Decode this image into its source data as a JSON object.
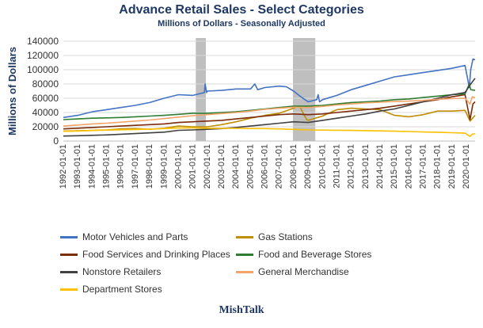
{
  "header": {
    "title": "Advance Retail Sales - Select Categories",
    "subtitle": "Millions  of Dollars  - Seasonally  Adjusted"
  },
  "footer": {
    "brand": "MishTalk"
  },
  "chart_data": {
    "type": "line",
    "title": "Advance Retail Sales - Select Categories",
    "subtitle": "Millions  of Dollars  - Seasonally  Adjusted",
    "ylabel": "Millions of Dollars",
    "xlabel": "",
    "ylim": [
      0,
      140000
    ],
    "yticks": [
      "0",
      "20000",
      "40000",
      "60000",
      "80000",
      "100000",
      "120000",
      "140000"
    ],
    "xlim": [
      1992.0,
      2020.6
    ],
    "xticks": [
      "1992-01-01",
      "1993-01-01",
      "1994-01-01",
      "1995-01-01",
      "1996-01-01",
      "1997-01-01",
      "1998-01-01",
      "1999-01-01",
      "2000-01-01",
      "2001-01-01",
      "2002-01-01",
      "2003-01-01",
      "2004-01-01",
      "2005-01-01",
      "2006-01-01",
      "2007-01-01",
      "2008-01-01",
      "2009-01-01",
      "2010-01-01",
      "2011-01-01",
      "2012-01-01",
      "2013-01-01",
      "2014-01-01",
      "2015-01-01",
      "2016-01-01",
      "2017-01-01",
      "2018-01-01",
      "2019-01-01",
      "2020-01-01"
    ],
    "recessions": [
      [
        2001.2,
        2001.9
      ],
      [
        2007.95,
        2009.5
      ]
    ],
    "grid": "horizontal",
    "legend_position": "bottom",
    "series": [
      {
        "name": "Motor Vehicles and Parts",
        "color": "#4472c4",
        "points": [
          [
            1992,
            33000
          ],
          [
            1993,
            36000
          ],
          [
            1994,
            41000
          ],
          [
            1995,
            44000
          ],
          [
            1996,
            47000
          ],
          [
            1997,
            50000
          ],
          [
            1998,
            54000
          ],
          [
            1999,
            60000
          ],
          [
            2000,
            65000
          ],
          [
            2001,
            64000
          ],
          [
            2001.8,
            68000
          ],
          [
            2001.85,
            80000
          ],
          [
            2001.95,
            68000
          ],
          [
            2002,
            70000
          ],
          [
            2003,
            71000
          ],
          [
            2004,
            73000
          ],
          [
            2005,
            73000
          ],
          [
            2005.3,
            80000
          ],
          [
            2005.5,
            72000
          ],
          [
            2006,
            75000
          ],
          [
            2007,
            77000
          ],
          [
            2007.5,
            76000
          ],
          [
            2008,
            70000
          ],
          [
            2008.5,
            62000
          ],
          [
            2009,
            55000
          ],
          [
            2009.6,
            58000
          ],
          [
            2009.7,
            65000
          ],
          [
            2009.8,
            55000
          ],
          [
            2010,
            58000
          ],
          [
            2011,
            64000
          ],
          [
            2012,
            72000
          ],
          [
            2013,
            78000
          ],
          [
            2014,
            84000
          ],
          [
            2015,
            90000
          ],
          [
            2016,
            93000
          ],
          [
            2017,
            96000
          ],
          [
            2018,
            99000
          ],
          [
            2019,
            102000
          ],
          [
            2019.9,
            106000
          ],
          [
            2020.2,
            75000
          ],
          [
            2020.3,
            100000
          ],
          [
            2020.45,
            115000
          ],
          [
            2020.6,
            114000
          ]
        ]
      },
      {
        "name": "Gas Stations",
        "color": "#bf8f00",
        "points": [
          [
            1992,
            14000
          ],
          [
            1993,
            14500
          ],
          [
            1994,
            15000
          ],
          [
            1995,
            15500
          ],
          [
            1996,
            17000
          ],
          [
            1997,
            17500
          ],
          [
            1998,
            16500
          ],
          [
            1999,
            18000
          ],
          [
            2000,
            21000
          ],
          [
            2001,
            20000
          ],
          [
            2002,
            20000
          ],
          [
            2003,
            23000
          ],
          [
            2004,
            27000
          ],
          [
            2005,
            32000
          ],
          [
            2006,
            36000
          ],
          [
            2007,
            39000
          ],
          [
            2008,
            46000
          ],
          [
            2008.4,
            49000
          ],
          [
            2008.9,
            30000
          ],
          [
            2009,
            29000
          ],
          [
            2010,
            35000
          ],
          [
            2011,
            44000
          ],
          [
            2012,
            46000
          ],
          [
            2013,
            45000
          ],
          [
            2014,
            44000
          ],
          [
            2015,
            36000
          ],
          [
            2016,
            34000
          ],
          [
            2017,
            37000
          ],
          [
            2018,
            42000
          ],
          [
            2019,
            42000
          ],
          [
            2019.9,
            43000
          ],
          [
            2020.25,
            28000
          ],
          [
            2020.6,
            36000
          ]
        ]
      },
      {
        "name": "Food Services and Drinking Places",
        "color": "#7b2c0a",
        "points": [
          [
            1992,
            17000
          ],
          [
            1993,
            18000
          ],
          [
            1994,
            19000
          ],
          [
            1995,
            20000
          ],
          [
            1996,
            21000
          ],
          [
            1997,
            22000
          ],
          [
            1998,
            23000
          ],
          [
            1999,
            24000
          ],
          [
            2000,
            26000
          ],
          [
            2001,
            27000
          ],
          [
            2002,
            28000
          ],
          [
            2003,
            29000
          ],
          [
            2004,
            31000
          ],
          [
            2005,
            33000
          ],
          [
            2006,
            35000
          ],
          [
            2007,
            37000
          ],
          [
            2008,
            38000
          ],
          [
            2009,
            37000
          ],
          [
            2010,
            38000
          ],
          [
            2011,
            40000
          ],
          [
            2012,
            42000
          ],
          [
            2013,
            44000
          ],
          [
            2014,
            46000
          ],
          [
            2015,
            49000
          ],
          [
            2016,
            52000
          ],
          [
            2017,
            55000
          ],
          [
            2018,
            58000
          ],
          [
            2019,
            62000
          ],
          [
            2019.9,
            65000
          ],
          [
            2020.25,
            30000
          ],
          [
            2020.45,
            52000
          ],
          [
            2020.6,
            55000
          ]
        ]
      },
      {
        "name": "Food and Beverage Stores",
        "color": "#2e7d32",
        "points": [
          [
            1992,
            30000
          ],
          [
            1993,
            31000
          ],
          [
            1994,
            32000
          ],
          [
            1995,
            32500
          ],
          [
            1996,
            33000
          ],
          [
            1997,
            34000
          ],
          [
            1998,
            35000
          ],
          [
            1999,
            36000
          ],
          [
            2000,
            37500
          ],
          [
            2001,
            39000
          ],
          [
            2002,
            39000
          ],
          [
            2003,
            40000
          ],
          [
            2004,
            41000
          ],
          [
            2005,
            43000
          ],
          [
            2006,
            45000
          ],
          [
            2007,
            47000
          ],
          [
            2008,
            49000
          ],
          [
            2009,
            49000
          ],
          [
            2010,
            50000
          ],
          [
            2011,
            52000
          ],
          [
            2012,
            54000
          ],
          [
            2013,
            55000
          ],
          [
            2014,
            56000
          ],
          [
            2015,
            58000
          ],
          [
            2016,
            59000
          ],
          [
            2017,
            61000
          ],
          [
            2018,
            63000
          ],
          [
            2019,
            65000
          ],
          [
            2019.9,
            66000
          ],
          [
            2020.2,
            80000
          ],
          [
            2020.3,
            72000
          ],
          [
            2020.6,
            71000
          ]
        ]
      },
      {
        "name": "Nonstore Retailers",
        "color": "#404040",
        "points": [
          [
            1992,
            7000
          ],
          [
            1993,
            7500
          ],
          [
            1994,
            8000
          ],
          [
            1995,
            8500
          ],
          [
            1996,
            9500
          ],
          [
            1997,
            10500
          ],
          [
            1998,
            11500
          ],
          [
            1999,
            12500
          ],
          [
            2000,
            15000
          ],
          [
            2001,
            15500
          ],
          [
            2002,
            16500
          ],
          [
            2003,
            17500
          ],
          [
            2004,
            19000
          ],
          [
            2005,
            21000
          ],
          [
            2006,
            23000
          ],
          [
            2007,
            25000
          ],
          [
            2008,
            27000
          ],
          [
            2009,
            26000
          ],
          [
            2010,
            29000
          ],
          [
            2011,
            32000
          ],
          [
            2012,
            35000
          ],
          [
            2013,
            38000
          ],
          [
            2014,
            42000
          ],
          [
            2015,
            45000
          ],
          [
            2016,
            50000
          ],
          [
            2017,
            55000
          ],
          [
            2018,
            60000
          ],
          [
            2019,
            65000
          ],
          [
            2019.9,
            68000
          ],
          [
            2020.3,
            80000
          ],
          [
            2020.6,
            88000
          ]
        ]
      },
      {
        "name": "General Merchandise",
        "color": "#f4a46a",
        "points": [
          [
            1992,
            21000
          ],
          [
            1993,
            22500
          ],
          [
            1994,
            24000
          ],
          [
            1995,
            25000
          ],
          [
            1996,
            26500
          ],
          [
            1997,
            28000
          ],
          [
            1998,
            29500
          ],
          [
            1999,
            31500
          ],
          [
            2000,
            33500
          ],
          [
            2001,
            35500
          ],
          [
            2002,
            37000
          ],
          [
            2003,
            38500
          ],
          [
            2004,
            40000
          ],
          [
            2005,
            42000
          ],
          [
            2006,
            44500
          ],
          [
            2007,
            46000
          ],
          [
            2008,
            47500
          ],
          [
            2009,
            47000
          ],
          [
            2010,
            48500
          ],
          [
            2011,
            50500
          ],
          [
            2012,
            52000
          ],
          [
            2013,
            53500
          ],
          [
            2014,
            54500
          ],
          [
            2015,
            55500
          ],
          [
            2016,
            56000
          ],
          [
            2017,
            57000
          ],
          [
            2018,
            58500
          ],
          [
            2019,
            59500
          ],
          [
            2019.9,
            60000
          ],
          [
            2020.25,
            52000
          ],
          [
            2020.4,
            62000
          ],
          [
            2020.6,
            61000
          ]
        ]
      },
      {
        "name": "Department Stores",
        "color": "#ffc000",
        "points": [
          [
            1992,
            13500
          ],
          [
            1993,
            14000
          ],
          [
            1994,
            14800
          ],
          [
            1995,
            15300
          ],
          [
            1996,
            15800
          ],
          [
            1997,
            16200
          ],
          [
            1998,
            16800
          ],
          [
            1999,
            17500
          ],
          [
            2000,
            18200
          ],
          [
            2001,
            18300
          ],
          [
            2002,
            18000
          ],
          [
            2003,
            17800
          ],
          [
            2004,
            17800
          ],
          [
            2005,
            17600
          ],
          [
            2006,
            17400
          ],
          [
            2007,
            17000
          ],
          [
            2008,
            16300
          ],
          [
            2009,
            15600
          ],
          [
            2010,
            15300
          ],
          [
            2011,
            15100
          ],
          [
            2012,
            14900
          ],
          [
            2013,
            14600
          ],
          [
            2014,
            14200
          ],
          [
            2015,
            13800
          ],
          [
            2016,
            13300
          ],
          [
            2017,
            12700
          ],
          [
            2018,
            12300
          ],
          [
            2019,
            11700
          ],
          [
            2019.9,
            11000
          ],
          [
            2020.25,
            6500
          ],
          [
            2020.4,
            9500
          ],
          [
            2020.6,
            10500
          ]
        ]
      }
    ]
  }
}
